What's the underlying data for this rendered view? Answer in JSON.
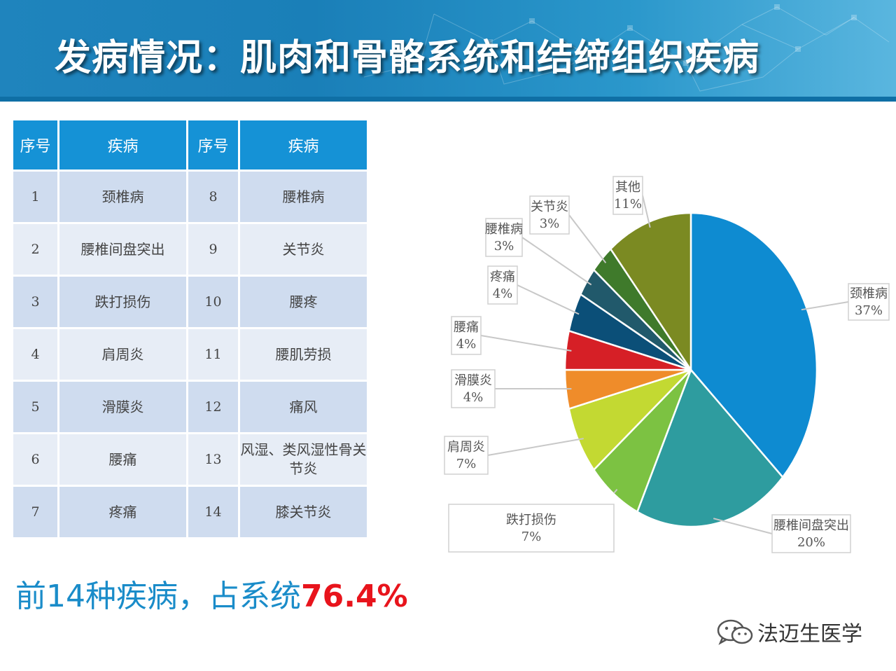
{
  "header": {
    "title": "发病情况：肌肉和骨骼系统和结缔组织疾病"
  },
  "table": {
    "headers": [
      "序号",
      "疾病",
      "序号",
      "疾病"
    ],
    "rows": [
      [
        "1",
        "颈椎病",
        "8",
        "腰椎病"
      ],
      [
        "2",
        "腰椎间盘突出",
        "9",
        "关节炎"
      ],
      [
        "3",
        "跌打损伤",
        "10",
        "腰疼"
      ],
      [
        "4",
        "肩周炎",
        "11",
        "腰肌劳损"
      ],
      [
        "5",
        "滑膜炎",
        "12",
        "痛风"
      ],
      [
        "6",
        "腰痛",
        "13",
        "风湿、类风湿性骨关节炎"
      ],
      [
        "7",
        "疼痛",
        "14",
        "膝关节炎"
      ]
    ]
  },
  "summary": {
    "main": "前14种疾病，占系统",
    "percent": "76.4%"
  },
  "watermark": {
    "text": "法迈生医学",
    "icon": "wechat-icon"
  },
  "chart_data": {
    "type": "pie",
    "slices": [
      {
        "label": "颈椎病",
        "value": 37,
        "display": "37%",
        "color": "#0e8bd1"
      },
      {
        "label": "腰椎间盘突出",
        "value": 20,
        "display": "20%",
        "color": "#2e9c9f"
      },
      {
        "label": "跌打损伤",
        "value": 7,
        "display": "7%",
        "color": "#7cc242"
      },
      {
        "label": "肩周炎",
        "value": 7,
        "display": "7%",
        "color": "#c3d932"
      },
      {
        "label": "滑膜炎",
        "value": 4,
        "display": "4%",
        "color": "#ef8c2a"
      },
      {
        "label": "腰痛",
        "value": 4,
        "display": "4%",
        "color": "#d61f26"
      },
      {
        "label": "疼痛",
        "value": 4,
        "display": "4%",
        "color": "#0b4f78"
      },
      {
        "label": "腰椎病",
        "value": 3,
        "display": "3%",
        "color": "#21596b"
      },
      {
        "label": "关节炎",
        "value": 3,
        "display": "3%",
        "color": "#3f7a2b"
      },
      {
        "label": "其他",
        "value": 11,
        "display": "11%",
        "color": "#7b8a22"
      }
    ]
  }
}
